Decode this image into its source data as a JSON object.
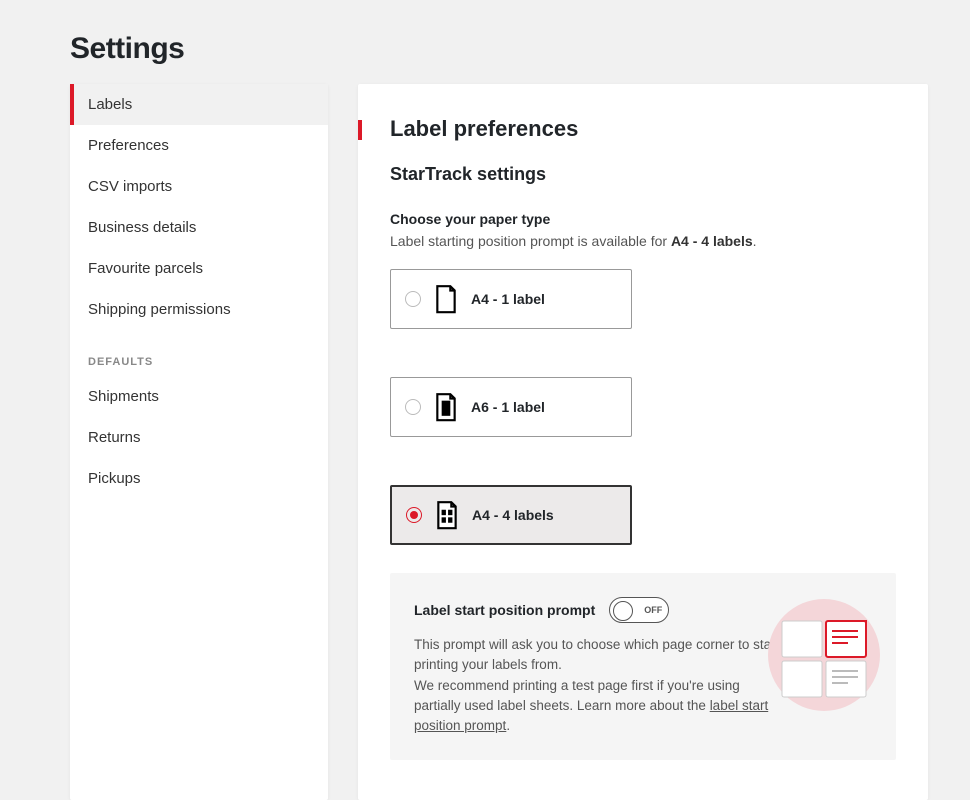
{
  "pageTitle": "Settings",
  "sidebar": {
    "items": [
      {
        "label": "Labels",
        "active": true
      },
      {
        "label": "Preferences",
        "active": false
      },
      {
        "label": "CSV imports",
        "active": false
      },
      {
        "label": "Business details",
        "active": false
      },
      {
        "label": "Favourite parcels",
        "active": false
      },
      {
        "label": "Shipping permissions",
        "active": false
      }
    ],
    "defaultsHeader": "DEFAULTS",
    "defaults": [
      {
        "label": "Shipments"
      },
      {
        "label": "Returns"
      },
      {
        "label": "Pickups"
      }
    ]
  },
  "main": {
    "heading": "Label preferences",
    "subheading": "StarTrack settings",
    "paperType": {
      "label": "Choose your paper type",
      "helpPrefix": "Label starting position prompt is available for ",
      "helpBold": "A4 - 4 labels",
      "helpSuffix": ".",
      "options": [
        {
          "id": "a4-1",
          "label": "A4 - 1 label",
          "selected": false
        },
        {
          "id": "a6-1",
          "label": "A6 - 1 label",
          "selected": false
        },
        {
          "id": "a4-4",
          "label": "A4 - 4 labels",
          "selected": true
        }
      ]
    },
    "prompt": {
      "title": "Label start position prompt",
      "toggleState": "OFF",
      "body1": "This prompt will ask you to choose which page corner to start printing your labels from.",
      "body2prefix": "We recommend printing a test page first if you're using partially used label sheets. Learn more about the ",
      "linkText": "label start position prompt",
      "body2suffix": "."
    }
  },
  "colors": {
    "accent": "#dc1928",
    "pageBg": "#f1f1f1",
    "cardBg": "#ffffff",
    "panelBg": "#f5f5f5",
    "textMuted": "#555555",
    "illusPink": "#f4d6d9"
  }
}
